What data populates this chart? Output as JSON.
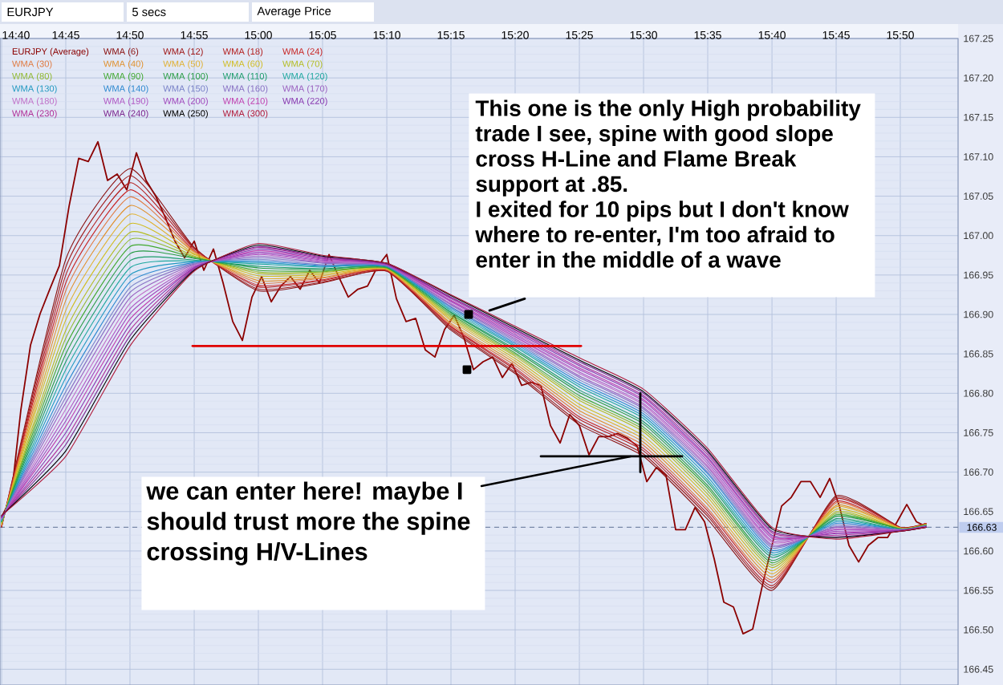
{
  "chart_data": {
    "type": "line",
    "title": "EURJPY",
    "annotations": [
      "This one is the only High probability trade I see, spine with good slope cross H-Line and Flame Break support at .85.",
      "I exited for 10 pips but I don't know where to re-enter, I'm too afraid to enter in the middle of a wave",
      {
        "text": "we can enter here! maybe I should trust more the spine crossing H/V-Lines",
        "x": 15.4833,
        "y": 166.72
      },
      "5 secs",
      "Average Price"
    ],
    "xlim": [
      14.6646,
      15.9083
    ],
    "ylim": [
      166.43,
      167.25
    ],
    "xticks": [
      {
        "value": 14.6667,
        "label": "14:40"
      },
      {
        "value": 14.75,
        "label": "14:45"
      },
      {
        "value": 14.8333,
        "label": "14:50"
      },
      {
        "value": 14.9167,
        "label": "14:55"
      },
      {
        "value": 15.0,
        "label": "15:00"
      },
      {
        "value": 15.0833,
        "label": "15:05"
      },
      {
        "value": 15.1667,
        "label": "15:10"
      },
      {
        "value": 15.25,
        "label": "15:15"
      },
      {
        "value": 15.3333,
        "label": "15:20"
      },
      {
        "value": 15.4167,
        "label": "15:25"
      },
      {
        "value": 15.5,
        "label": "15:30"
      },
      {
        "value": 15.5833,
        "label": "15:35"
      },
      {
        "value": 15.6667,
        "label": "15:40"
      },
      {
        "value": 15.75,
        "label": "15:45"
      },
      {
        "value": 15.8333,
        "label": "15:50"
      }
    ],
    "yticks": [
      167.25,
      {
        "value": 167.2,
        "label": "167.20"
      },
      167.15,
      {
        "value": 167.1,
        "label": "167.10"
      },
      167.05,
      {
        "value": 167.0,
        "label": "167.00"
      },
      166.95,
      {
        "value": 166.9,
        "label": "166.90"
      },
      166.85,
      {
        "value": 166.8,
        "label": "166.80"
      },
      166.75,
      {
        "value": 166.7,
        "label": "166.70"
      },
      166.65,
      {
        "value": 166.6,
        "label": "166.60"
      },
      166.55,
      {
        "value": 166.5,
        "label": "166.50"
      },
      166.45
    ],
    "grid": true,
    "legend": "top left",
    "ref_lines": [
      {
        "axis": "y",
        "value": 166.63,
        "label": "166.63",
        "color": "#7888a8",
        "line_style": "dashed"
      }
    ],
    "x": [
      14.6667,
      14.75,
      14.8333,
      14.9167,
      15.0,
      15.0833,
      15.1667,
      15.25,
      15.3333,
      15.4167,
      15.5,
      15.5833,
      15.6667,
      15.75,
      15.8333,
      15.8667
    ],
    "series": [
      {
        "name": "EURJPY (Average)",
        "color": "#8b0000",
        "x": [
          14.6667,
          14.6792,
          14.6917,
          14.7042,
          14.7167,
          14.7292,
          14.7417,
          14.7542,
          14.7667,
          14.7792,
          14.7917,
          14.8042,
          14.8167,
          14.8292,
          14.8417,
          14.8542,
          14.8667,
          14.8792,
          14.8917,
          14.9042,
          14.9167,
          14.9292,
          14.9417,
          14.9542,
          14.9667,
          14.9792,
          14.9917,
          15.0042,
          15.0167,
          15.0292,
          15.0417,
          15.0542,
          15.0667,
          15.0792,
          15.0917,
          15.1042,
          15.1167,
          15.1292,
          15.1417,
          15.1542,
          15.1667,
          15.1792,
          15.1917,
          15.2042,
          15.2167,
          15.2292,
          15.2417,
          15.2542,
          15.2667,
          15.2792,
          15.2917,
          15.3042,
          15.3167,
          15.3292,
          15.3417,
          15.3542,
          15.3667,
          15.3792,
          15.3917,
          15.4042,
          15.4167,
          15.4292,
          15.4417,
          15.4542,
          15.4667,
          15.4792,
          15.4917,
          15.5042,
          15.5167,
          15.5292,
          15.5417,
          15.5542,
          15.5667,
          15.5792,
          15.5917,
          15.6042,
          15.6167,
          15.6292,
          15.6417,
          15.6542,
          15.6667,
          15.6792,
          15.6917,
          15.7042,
          15.7167,
          15.7292,
          15.7417,
          15.7542,
          15.7667,
          15.7792,
          15.7917,
          15.8042,
          15.8167,
          15.8292,
          15.8417,
          15.8542,
          15.8667
        ],
        "values": [
          166.643,
          166.668,
          166.779,
          166.861,
          166.901,
          166.932,
          166.962,
          167.037,
          167.098,
          167.094,
          167.119,
          167.07,
          167.078,
          167.058,
          167.105,
          167.07,
          167.05,
          167.023,
          166.993,
          166.972,
          166.993,
          166.956,
          166.983,
          166.94,
          166.891,
          166.867,
          166.922,
          166.948,
          166.916,
          166.936,
          166.948,
          166.932,
          166.956,
          166.94,
          166.976,
          166.948,
          166.922,
          166.932,
          166.936,
          166.96,
          166.976,
          166.92,
          166.891,
          166.895,
          166.855,
          166.846,
          166.881,
          166.899,
          166.871,
          166.83,
          166.84,
          166.846,
          166.82,
          166.838,
          166.81,
          166.814,
          166.81,
          166.759,
          166.737,
          166.773,
          166.759,
          166.722,
          166.745,
          166.745,
          166.749,
          166.743,
          166.733,
          166.688,
          166.706,
          166.696,
          166.627,
          166.627,
          166.655,
          166.637,
          166.59,
          166.535,
          166.529,
          166.495,
          166.501,
          166.556,
          166.607,
          166.657,
          166.668,
          166.688,
          166.688,
          166.668,
          166.692,
          166.657,
          166.607,
          166.586,
          166.607,
          166.617,
          166.617,
          166.637,
          166.659,
          166.637,
          166.631
        ]
      },
      {
        "name": "WMA (6)",
        "color": "#8c1414",
        "values": [
          166.63,
          166.97,
          167.085,
          166.985,
          166.93,
          166.94,
          166.955,
          166.88,
          166.825,
          166.76,
          166.72,
          166.64,
          166.55,
          166.67,
          166.63,
          166.635
        ]
      },
      {
        "name": "WMA (12)",
        "color": "#a01a1a",
        "values": [
          166.631,
          166.96,
          167.076,
          166.984,
          166.932,
          166.941,
          166.955,
          166.882,
          166.827,
          166.763,
          166.723,
          166.644,
          166.553,
          166.668,
          166.63,
          166.635
        ]
      },
      {
        "name": "WMA (18)",
        "color": "#b42020",
        "values": [
          166.631,
          166.95,
          167.067,
          166.983,
          166.935,
          166.943,
          166.956,
          166.884,
          166.83,
          166.767,
          166.727,
          166.647,
          166.556,
          166.666,
          166.63,
          166.635
        ]
      },
      {
        "name": "WMA (24)",
        "color": "#c82828",
        "values": [
          166.632,
          166.94,
          167.058,
          166.981,
          166.937,
          166.944,
          166.956,
          166.885,
          166.832,
          166.77,
          166.73,
          166.651,
          166.56,
          166.663,
          166.629,
          166.634
        ]
      },
      {
        "name": "WMA (30)",
        "color": "#e07a40",
        "values": [
          166.632,
          166.93,
          167.049,
          166.98,
          166.94,
          166.946,
          166.957,
          166.887,
          166.835,
          166.774,
          166.734,
          166.654,
          166.563,
          166.661,
          166.629,
          166.634
        ]
      },
      {
        "name": "WMA (40)",
        "color": "#e0902c",
        "values": [
          166.633,
          166.918,
          167.038,
          166.979,
          166.943,
          166.947,
          166.957,
          166.889,
          166.838,
          166.778,
          166.738,
          166.659,
          166.567,
          166.658,
          166.629,
          166.634
        ]
      },
      {
        "name": "WMA (50)",
        "color": "#e0b030",
        "values": [
          166.634,
          166.905,
          167.027,
          166.977,
          166.946,
          166.949,
          166.958,
          166.892,
          166.841,
          166.782,
          166.742,
          166.663,
          166.571,
          166.656,
          166.629,
          166.634
        ]
      },
      {
        "name": "WMA (60)",
        "color": "#d0bc20",
        "values": [
          166.635,
          166.893,
          167.015,
          166.976,
          166.949,
          166.951,
          166.958,
          166.894,
          166.844,
          166.786,
          166.746,
          166.668,
          166.575,
          166.653,
          166.628,
          166.633
        ]
      },
      {
        "name": "WMA (70)",
        "color": "#b4bc20",
        "values": [
          166.635,
          166.88,
          167.004,
          166.974,
          166.952,
          166.953,
          166.959,
          166.896,
          166.847,
          166.791,
          166.751,
          166.672,
          166.579,
          166.65,
          166.628,
          166.633
        ]
      },
      {
        "name": "WMA (80)",
        "color": "#90b830",
        "values": [
          166.636,
          166.87,
          166.995,
          166.973,
          166.954,
          166.954,
          166.959,
          166.898,
          166.849,
          166.794,
          166.754,
          166.676,
          166.582,
          166.648,
          166.628,
          166.633
        ]
      },
      {
        "name": "WMA (90)",
        "color": "#40a830",
        "values": [
          166.637,
          166.86,
          166.986,
          166.972,
          166.956,
          166.955,
          166.959,
          166.9,
          166.851,
          166.797,
          166.757,
          166.68,
          166.585,
          166.646,
          166.628,
          166.633
        ]
      },
      {
        "name": "WMA (100)",
        "color": "#289c44",
        "values": [
          166.637,
          166.85,
          166.977,
          166.971,
          166.959,
          166.957,
          166.96,
          166.902,
          166.854,
          166.801,
          166.761,
          166.683,
          166.588,
          166.644,
          166.628,
          166.633
        ]
      },
      {
        "name": "WMA (110)",
        "color": "#1c9c6c",
        "values": [
          166.638,
          166.84,
          166.968,
          166.969,
          166.961,
          166.958,
          166.96,
          166.903,
          166.856,
          166.804,
          166.764,
          166.687,
          166.592,
          166.641,
          166.627,
          166.632
        ]
      },
      {
        "name": "WMA (120)",
        "color": "#20a8a0",
        "values": [
          166.638,
          166.83,
          166.959,
          166.968,
          166.964,
          166.96,
          166.961,
          166.905,
          166.859,
          166.808,
          166.768,
          166.69,
          166.595,
          166.639,
          166.627,
          166.632
        ]
      },
      {
        "name": "WMA (130)",
        "color": "#2098c0",
        "values": [
          166.639,
          166.82,
          166.95,
          166.967,
          166.966,
          166.961,
          166.961,
          166.907,
          166.861,
          166.811,
          166.771,
          166.694,
          166.598,
          166.637,
          166.627,
          166.632
        ]
      },
      {
        "name": "WMA (140)",
        "color": "#2c88d0",
        "values": [
          166.64,
          166.81,
          166.941,
          166.966,
          166.968,
          166.962,
          166.961,
          166.909,
          166.863,
          166.814,
          166.774,
          166.698,
          166.601,
          166.635,
          166.627,
          166.632
        ]
      },
      {
        "name": "WMA (150)",
        "color": "#7880c8",
        "values": [
          166.64,
          166.802,
          166.934,
          166.965,
          166.97,
          166.963,
          166.962,
          166.91,
          166.865,
          166.817,
          166.777,
          166.7,
          166.604,
          166.633,
          166.627,
          166.632
        ]
      },
      {
        "name": "WMA (160)",
        "color": "#8870c4",
        "values": [
          166.641,
          166.795,
          166.928,
          166.964,
          166.972,
          166.965,
          166.962,
          166.912,
          166.867,
          166.82,
          166.78,
          166.703,
          166.606,
          166.631,
          166.627,
          166.632
        ]
      },
      {
        "name": "WMA (170)",
        "color": "#9a60c0",
        "values": [
          166.641,
          166.788,
          166.921,
          166.963,
          166.974,
          166.966,
          166.962,
          166.913,
          166.869,
          166.822,
          166.782,
          166.706,
          166.608,
          166.63,
          166.626,
          166.631
        ]
      },
      {
        "name": "WMA (180)",
        "color": "#c070c8",
        "values": [
          166.641,
          166.78,
          166.914,
          166.962,
          166.976,
          166.967,
          166.963,
          166.914,
          166.871,
          166.825,
          166.785,
          166.708,
          166.611,
          166.628,
          166.626,
          166.631
        ]
      },
      {
        "name": "WMA (190)",
        "color": "#b058c4",
        "values": [
          166.642,
          166.772,
          166.907,
          166.961,
          166.977,
          166.968,
          166.963,
          166.916,
          166.872,
          166.827,
          166.787,
          166.711,
          166.613,
          166.627,
          166.626,
          166.631
        ]
      },
      {
        "name": "WMA (200)",
        "color": "#a048bc",
        "values": [
          166.642,
          166.765,
          166.901,
          166.96,
          166.979,
          166.969,
          166.963,
          166.917,
          166.874,
          166.83,
          166.79,
          166.714,
          166.616,
          166.625,
          166.626,
          166.631
        ]
      },
      {
        "name": "WMA (210)",
        "color": "#c040b0",
        "values": [
          166.643,
          166.758,
          166.894,
          166.959,
          166.981,
          166.97,
          166.964,
          166.918,
          166.876,
          166.832,
          166.792,
          166.717,
          166.618,
          166.623,
          166.626,
          166.631
        ]
      },
      {
        "name": "WMA (220)",
        "color": "#8838b0",
        "values": [
          166.643,
          166.75,
          166.887,
          166.959,
          166.983,
          166.971,
          166.964,
          166.92,
          166.878,
          166.835,
          166.795,
          166.719,
          166.62,
          166.622,
          166.626,
          166.631
        ]
      },
      {
        "name": "WMA (230)",
        "color": "#b03098",
        "values": [
          166.644,
          166.742,
          166.88,
          166.958,
          166.985,
          166.972,
          166.964,
          166.921,
          166.88,
          166.837,
          166.797,
          166.722,
          166.623,
          166.62,
          166.625,
          166.63
        ]
      },
      {
        "name": "WMA (240)",
        "color": "#7c2890",
        "values": [
          166.644,
          166.735,
          166.873,
          166.957,
          166.986,
          166.973,
          166.964,
          166.922,
          166.881,
          166.84,
          166.8,
          166.725,
          166.625,
          166.618,
          166.625,
          166.63
        ]
      },
      {
        "name": "WMA (250)",
        "color": "#000000",
        "values": [
          166.645,
          166.727,
          166.867,
          166.956,
          166.988,
          166.974,
          166.965,
          166.924,
          166.883,
          166.842,
          166.802,
          166.727,
          166.628,
          166.617,
          166.625,
          166.63
        ]
      },
      {
        "name": "WMA (300)",
        "color": "#b01c3c",
        "values": [
          166.645,
          166.72,
          166.86,
          166.955,
          166.99,
          166.975,
          166.965,
          166.925,
          166.885,
          166.845,
          166.805,
          166.73,
          166.63,
          166.615,
          166.625,
          166.63
        ]
      },
      {
        "type": "line",
        "color": "#e00000",
        "x": [
          14.9146,
          15.4188
        ],
        "values": [
          166.86,
          166.86
        ]
      },
      {
        "type": "line",
        "color": "#000000",
        "x": [
          15.3667,
          15.55
        ],
        "values": [
          166.72,
          166.72
        ]
      },
      {
        "type": "line",
        "color": "#000000",
        "x": [
          15.4958,
          15.4958
        ],
        "values": [
          166.8,
          166.7
        ]
      },
      {
        "type": "line",
        "color": "#000000",
        "x": [
          15.3,
          15.3458
        ],
        "values": [
          166.905,
          166.92
        ]
      },
      {
        "type": "scatter",
        "marker": "square",
        "color": "#000000",
        "x": [
          15.2729,
          15.2708
        ],
        "values": [
          166.9,
          166.83
        ]
      }
    ]
  }
}
